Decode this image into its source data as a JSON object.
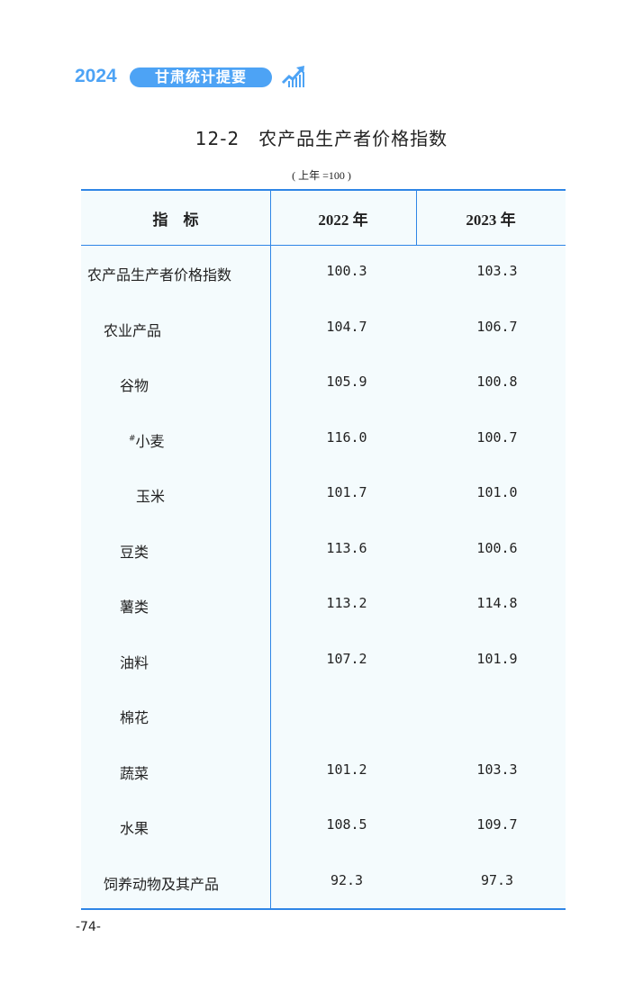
{
  "header": {
    "year": "2024",
    "book": "甘肃统计提要",
    "icon": "chart-trend-up-icon"
  },
  "title": "12-2　农产品生产者价格指数",
  "unit": "( 上年 =100 )",
  "colors": {
    "accent": "#4da3f5",
    "rule": "#2f86e6",
    "table_bg": "#f4fbfd"
  },
  "table": {
    "columns": [
      "指　标",
      "2022 年",
      "2023 年"
    ],
    "rows": [
      {
        "label": "农产品生产者价格指数",
        "level": 0,
        "v2022": "100.3",
        "v2023": "103.3"
      },
      {
        "label": "农业产品",
        "level": 1,
        "v2022": "104.7",
        "v2023": "106.7"
      },
      {
        "label": "谷物",
        "level": 2,
        "v2022": "105.9",
        "v2023": "100.8"
      },
      {
        "label": "小麦",
        "mark": "#",
        "level": 3,
        "v2022": "116.0",
        "v2023": "100.7"
      },
      {
        "label": "玉米",
        "level": 4,
        "v2022": "101.7",
        "v2023": "101.0"
      },
      {
        "label": "豆类",
        "level": 2,
        "v2022": "113.6",
        "v2023": "100.6"
      },
      {
        "label": "薯类",
        "level": 2,
        "v2022": "113.2",
        "v2023": "114.8"
      },
      {
        "label": "油料",
        "level": 2,
        "v2022": "107.2",
        "v2023": "101.9"
      },
      {
        "label": "棉花",
        "level": 2,
        "v2022": "",
        "v2023": ""
      },
      {
        "label": "蔬菜",
        "level": 2,
        "v2022": "101.2",
        "v2023": "103.3"
      },
      {
        "label": "水果",
        "level": 2,
        "v2022": "108.5",
        "v2023": "109.7"
      },
      {
        "label": "饲养动物及其产品",
        "level": 1,
        "v2022": "92.3",
        "v2023": "97.3"
      }
    ]
  },
  "page_number": "-74-"
}
